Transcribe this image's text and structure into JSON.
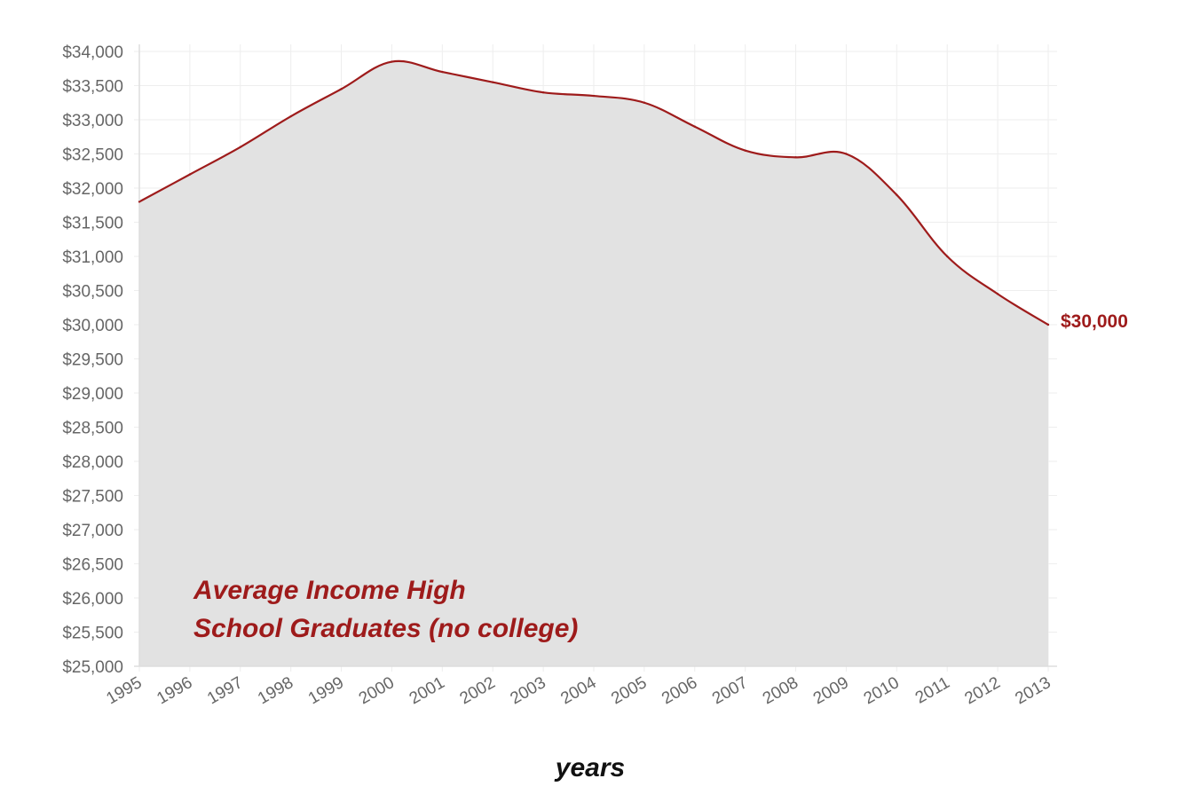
{
  "chart_data": {
    "type": "area",
    "title": "",
    "xlabel": "years",
    "ylabel": "",
    "ylim": [
      25000,
      34000
    ],
    "y_ticks": [
      "$25,000",
      "$25,500",
      "$26,000",
      "$26,500",
      "$27,000",
      "$27,500",
      "$28,000",
      "$28,500",
      "$29,000",
      "$29,500",
      "$30,000",
      "$30,500",
      "$31,000",
      "$31,500",
      "$32,000",
      "$32,500",
      "$33,000",
      "$33,500",
      "$34,000"
    ],
    "x": [
      "1995",
      "1996",
      "1997",
      "1998",
      "1999",
      "2000",
      "2001",
      "2002",
      "2003",
      "2004",
      "2005",
      "2006",
      "2007",
      "2008",
      "2009",
      "2010",
      "2011",
      "2012",
      "2013"
    ],
    "series": [
      {
        "values": [
          31800,
          32200,
          32600,
          33050,
          33450,
          33850,
          33700,
          33550,
          33400,
          33350,
          33250,
          32900,
          32550,
          32450,
          32500,
          31900,
          31000,
          30450,
          30000
        ]
      }
    ],
    "annotation_lines": [
      "Average Income High",
      "School Graduates (no college)"
    ],
    "end_label": "$30,000",
    "grid": true,
    "colors": {
      "line": "#9e1b1b",
      "fill": "#e2e2e2",
      "grid": "#eeeeee",
      "axis": "#dddddd"
    }
  }
}
